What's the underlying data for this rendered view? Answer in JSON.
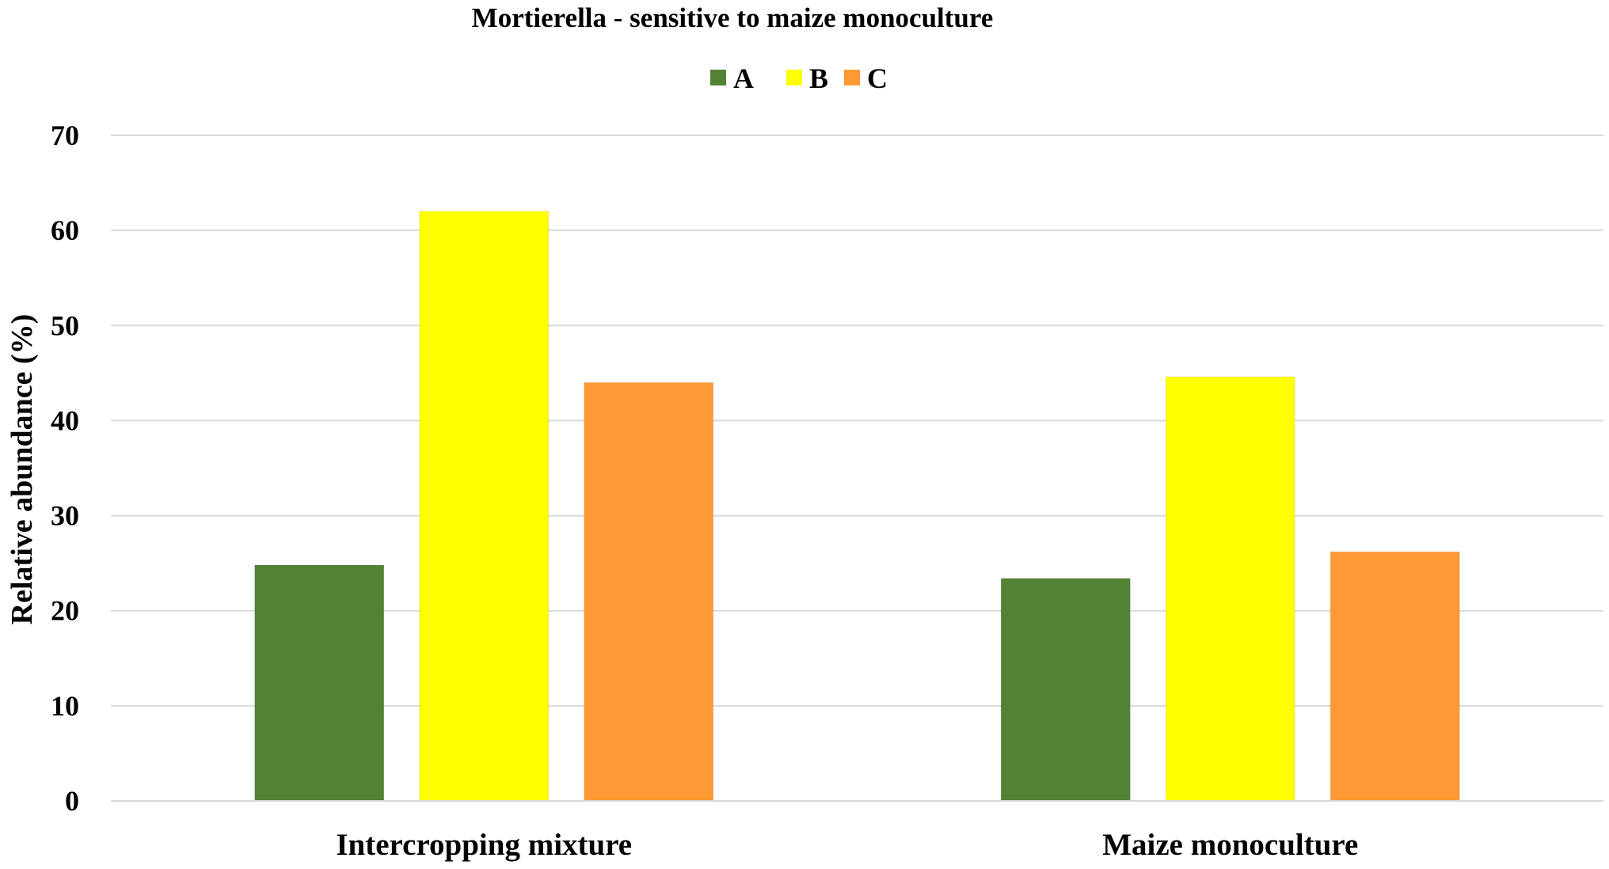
{
  "chart_data": {
    "type": "bar",
    "title": "Mortierella - sensitive to maize monoculture",
    "xlabel": "",
    "ylabel": "Relative abundance (%)",
    "ylim": [
      0,
      70
    ],
    "yticks": [
      0,
      10,
      20,
      30,
      40,
      50,
      60,
      70
    ],
    "grid": true,
    "legend_position": "top-center",
    "categories": [
      "Intercropping mixture",
      "Maize monoculture"
    ],
    "series": [
      {
        "name": "A",
        "color": "#538135",
        "values": [
          24.8,
          23.4
        ]
      },
      {
        "name": "B",
        "color": "#FFFF00",
        "values": [
          62.0,
          44.6
        ]
      },
      {
        "name": "C",
        "color": "#FF9933",
        "values": [
          44.0,
          26.2
        ]
      }
    ]
  }
}
